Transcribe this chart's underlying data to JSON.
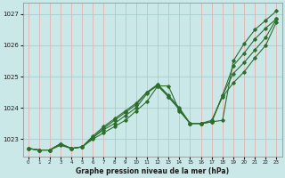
{
  "xlabel": "Graphe pression niveau de la mer (hPa)",
  "bg_color": "#cbe8e8",
  "grid_color_v": "#e8b0b0",
  "grid_color_h": "#aacccc",
  "line_color": "#2d6e2d",
  "xlim": [
    -0.5,
    23.5
  ],
  "ylim": [
    1022.45,
    1027.35
  ],
  "yticks": [
    1023,
    1024,
    1025,
    1026,
    1027
  ],
  "xticks": [
    0,
    1,
    2,
    3,
    4,
    5,
    6,
    7,
    8,
    9,
    10,
    11,
    12,
    13,
    14,
    15,
    16,
    17,
    18,
    19,
    20,
    21,
    22,
    23
  ],
  "lines": [
    {
      "x": [
        0,
        1,
        2,
        3,
        4,
        5,
        6,
        7,
        8,
        9,
        10,
        11,
        12,
        13,
        14,
        15,
        16,
        17,
        18,
        19,
        20,
        21,
        22,
        23
      ],
      "y": [
        1022.7,
        1022.65,
        1022.65,
        1022.8,
        1022.7,
        1022.75,
        1023.0,
        1023.2,
        1023.4,
        1023.6,
        1023.9,
        1024.2,
        1024.7,
        1024.7,
        1023.9,
        1023.5,
        1023.5,
        1023.55,
        1023.6,
        1025.5,
        1026.05,
        1026.5,
        1026.8,
        1027.1
      ]
    },
    {
      "x": [
        0,
        1,
        2,
        3,
        4,
        5,
        6,
        7,
        8,
        9,
        10,
        11,
        12,
        13,
        14,
        15,
        16,
        17,
        18,
        19,
        20,
        21,
        22,
        23
      ],
      "y": [
        1022.7,
        1022.65,
        1022.65,
        1022.85,
        1022.7,
        1022.75,
        1023.05,
        1023.3,
        1023.5,
        1023.75,
        1024.0,
        1024.45,
        1024.75,
        1024.4,
        1024.0,
        1023.5,
        1023.5,
        1023.55,
        1024.4,
        1025.35,
        1025.75,
        1026.2,
        1026.55,
        1026.85
      ]
    },
    {
      "x": [
        0,
        1,
        2,
        3,
        4,
        5,
        6,
        7,
        8,
        9,
        10,
        11,
        12,
        13,
        14,
        15,
        16,
        17,
        18,
        19,
        20,
        21,
        22,
        23
      ],
      "y": [
        1022.7,
        1022.65,
        1022.65,
        1022.85,
        1022.7,
        1022.75,
        1023.05,
        1023.35,
        1023.6,
        1023.85,
        1024.1,
        1024.5,
        1024.75,
        1024.35,
        1023.95,
        1023.5,
        1023.5,
        1023.55,
        1024.4,
        1025.1,
        1025.45,
        1025.85,
        1026.25,
        1026.85
      ]
    },
    {
      "x": [
        0,
        1,
        2,
        3,
        4,
        5,
        6,
        7,
        8,
        9,
        10,
        11,
        12,
        13,
        14,
        15,
        16,
        17,
        18,
        19,
        20,
        21,
        22,
        23
      ],
      "y": [
        1022.7,
        1022.65,
        1022.65,
        1022.85,
        1022.7,
        1022.75,
        1023.1,
        1023.4,
        1023.65,
        1023.9,
        1024.15,
        1024.5,
        1024.7,
        1024.35,
        1023.95,
        1023.5,
        1023.5,
        1023.6,
        1024.35,
        1024.8,
        1025.15,
        1025.6,
        1026.0,
        1026.75
      ]
    }
  ]
}
